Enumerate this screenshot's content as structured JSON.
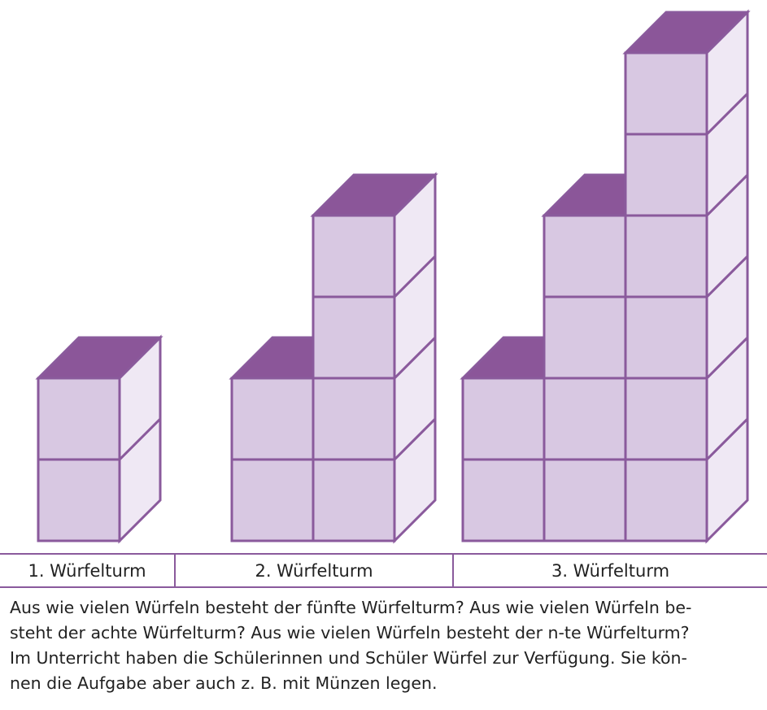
{
  "towers": [
    {
      "label": "1. Würfelturm",
      "columns": [
        2
      ]
    },
    {
      "label": "2. Würfelturm",
      "columns": [
        2,
        4
      ]
    },
    {
      "label": "3. Würfelturm",
      "columns": [
        2,
        4,
        6
      ]
    }
  ],
  "colors": {
    "front": "#d8c8e2",
    "side": "#efe8f4",
    "top": "#8b5699",
    "edge": "#8a5a9c"
  },
  "task": {
    "lines": [
      "Aus wie vielen Würfeln besteht der fünfte Würfelturm? Aus wie vielen Würfeln be-",
      "steht der achte Würfelturm? Aus wie vielen Würfeln besteht der n-te Würfelturm?",
      "Im Unterricht haben die Schülerinnen und Schüler Würfel zur Verfügung. Sie kön-",
      "nen die Aufgabe aber auch z. B. mit Münzen legen."
    ]
  }
}
